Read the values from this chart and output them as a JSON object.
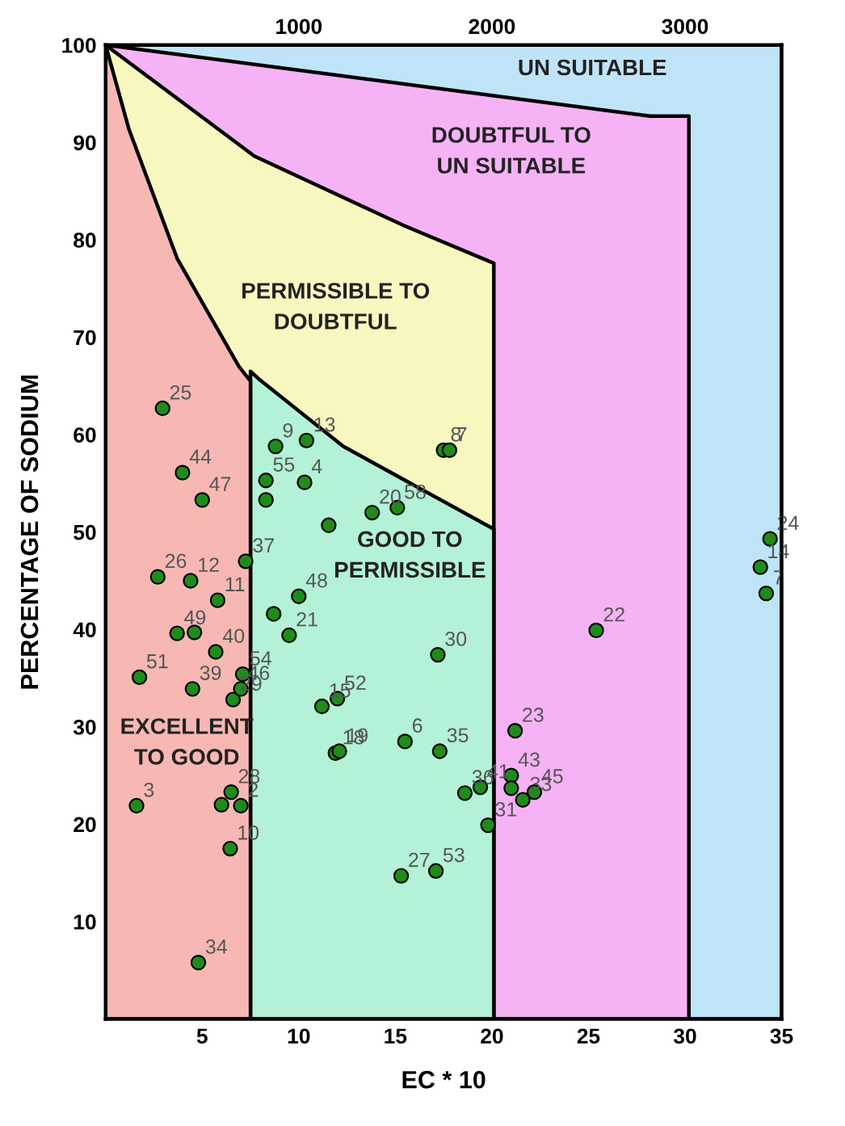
{
  "chart_data": {
    "type": "scatter",
    "xlabel": "EC * 10",
    "ylabel": "PERCENTAGE OF SODIUM",
    "xlim": [
      0,
      35
    ],
    "xticks": [
      5,
      10,
      15,
      20,
      25,
      30,
      35
    ],
    "ylim": [
      0,
      100
    ],
    "yticks": [
      10,
      20,
      30,
      40,
      50,
      60,
      70,
      80,
      90,
      100
    ],
    "x2lim": [
      0,
      3500
    ],
    "x2ticks": [
      1000,
      2000,
      3000
    ],
    "series": [
      {
        "type": "area",
        "color": "#bfe4f8",
        "x": [
          0,
          35
        ],
        "values": [
          100,
          100
        ]
      },
      {
        "type": "area",
        "color": "#f5b3f5",
        "x": [
          0,
          28.2,
          30.2
        ],
        "values": [
          100,
          92.7,
          92.7
        ]
      },
      {
        "type": "area",
        "color": "#f8f7c0",
        "x": [
          0,
          7.7,
          15.4,
          20.1
        ],
        "values": [
          100,
          88.6,
          81.5,
          77.6
        ]
      },
      {
        "type": "area",
        "color": "#b3f2d6",
        "x": [
          7.5,
          8.0,
          12.3,
          20.1
        ],
        "values": [
          66.5,
          65.6,
          58.8,
          50.3
        ]
      },
      {
        "type": "area",
        "color": "#f7b8b3",
        "x": [
          0,
          1.2,
          3.7,
          6.9,
          7.5
        ],
        "values": [
          100,
          91.4,
          78.1,
          67,
          65.5
        ]
      },
      {
        "type": "scatter",
        "color": "#1f8c1a",
        "marker": "circle",
        "x": [
          2.95,
          3.98,
          5.0,
          8.8,
          10.4,
          8.3,
          8.3,
          10.3,
          7.25,
          2.7,
          4.4,
          5.8,
          3.7,
          4.6,
          1.75,
          5.7,
          7.1,
          4.5,
          6.6,
          7.0,
          1.6,
          6.5,
          7.0,
          6.0,
          6.45,
          4.8,
          17.5,
          17.8,
          15.1,
          13.8,
          11.55,
          10.0,
          8.7,
          9.5,
          17.2,
          11.2,
          12.0,
          11.9,
          12.1,
          15.5,
          17.3,
          18.6,
          19.4,
          19.8,
          15.3,
          17.1,
          21.2,
          21.0,
          21.0,
          21.6,
          22.2,
          25.4,
          34.4,
          33.9,
          34.2
        ],
        "values": [
          62.7,
          56.1,
          53.3,
          58.8,
          59.4,
          55.3,
          53.3,
          55.1,
          47.0,
          45.4,
          45.0,
          43.0,
          39.6,
          39.7,
          35.1,
          37.7,
          35.4,
          33.9,
          32.8,
          33.9,
          21.9,
          23.3,
          21.9,
          22.0,
          17.5,
          5.8,
          58.4,
          58.4,
          52.5,
          52.0,
          50.7,
          43.4,
          41.6,
          39.4,
          37.4,
          32.1,
          32.9,
          27.3,
          27.5,
          28.5,
          27.5,
          23.2,
          23.8,
          19.9,
          14.7,
          15.2,
          29.6,
          25.0,
          23.7,
          22.5,
          23.3,
          39.9,
          49.3,
          46.4,
          43.7
        ]
      }
    ],
    "annotations": [
      "UN SUITABLE",
      "DOUBTFUL TO\nUN SUITABLE",
      "PERMISSIBLE TO\nDOUBTFUL",
      "GOOD TO\nPERMISSIBLE",
      "EXCELLENT\nTO GOOD",
      {
        "text": "25",
        "x": 2.95,
        "y": 62.7
      },
      {
        "text": "44",
        "x": 3.98,
        "y": 56.1
      },
      {
        "text": "47",
        "x": 5.0,
        "y": 53.3
      },
      {
        "text": "9",
        "x": 8.8,
        "y": 58.8
      },
      {
        "text": "13",
        "x": 10.4,
        "y": 59.4
      },
      {
        "text": "55",
        "x": 8.3,
        "y": 55.3
      },
      {
        "text": "4",
        "x": 10.3,
        "y": 55.1
      },
      {
        "text": "37",
        "x": 7.25,
        "y": 47.0
      },
      {
        "text": "26",
        "x": 2.7,
        "y": 45.4
      },
      {
        "text": "12",
        "x": 4.4,
        "y": 45.0
      },
      {
        "text": "11",
        "x": 5.8,
        "y": 43.0
      },
      {
        "text": "49",
        "x": 3.7,
        "y": 39.6
      },
      {
        "text": "51",
        "x": 1.75,
        "y": 35.1
      },
      {
        "text": "40",
        "x": 5.7,
        "y": 37.7
      },
      {
        "text": "54",
        "x": 7.1,
        "y": 35.4
      },
      {
        "text": "39",
        "x": 4.5,
        "y": 33.9
      },
      {
        "text": "29",
        "x": 6.6,
        "y": 32.8
      },
      {
        "text": "46",
        "x": 7.0,
        "y": 33.9
      },
      {
        "text": "3",
        "x": 1.6,
        "y": 21.9
      },
      {
        "text": "28",
        "x": 6.5,
        "y": 23.3
      },
      {
        "text": "2",
        "x": 7.0,
        "y": 21.9
      },
      {
        "text": "10",
        "x": 6.45,
        "y": 17.5
      },
      {
        "text": "34",
        "x": 4.8,
        "y": 5.8
      },
      {
        "text": "8",
        "x": 17.5,
        "y": 58.4
      },
      {
        "text": "7",
        "x": 17.8,
        "y": 58.4
      },
      {
        "text": "58",
        "x": 15.1,
        "y": 52.5
      },
      {
        "text": "20",
        "x": 13.8,
        "y": 52.0
      },
      {
        "text": "48",
        "x": 10.0,
        "y": 43.4
      },
      {
        "text": "21",
        "x": 9.5,
        "y": 39.4
      },
      {
        "text": "30",
        "x": 17.2,
        "y": 37.4
      },
      {
        "text": "15",
        "x": 11.2,
        "y": 32.1
      },
      {
        "text": "52",
        "x": 12.0,
        "y": 32.9
      },
      {
        "text": "18",
        "x": 11.9,
        "y": 27.3
      },
      {
        "text": "19",
        "x": 12.1,
        "y": 27.5
      },
      {
        "text": "6",
        "x": 15.5,
        "y": 28.5
      },
      {
        "text": "35",
        "x": 17.3,
        "y": 27.5
      },
      {
        "text": "36",
        "x": 18.6,
        "y": 23.2
      },
      {
        "text": "41",
        "x": 19.4,
        "y": 23.8
      },
      {
        "text": "31",
        "x": 19.8,
        "y": 19.9
      },
      {
        "text": "27",
        "x": 15.3,
        "y": 14.7
      },
      {
        "text": "53",
        "x": 17.1,
        "y": 15.2
      },
      {
        "text": "23",
        "x": 21.2,
        "y": 29.6
      },
      {
        "text": "43",
        "x": 21.0,
        "y": 25.0
      },
      {
        "text": "33",
        "x": 21.6,
        "y": 22.5
      },
      {
        "text": "45",
        "x": 22.2,
        "y": 23.3
      },
      {
        "text": "22",
        "x": 25.4,
        "y": 39.9
      },
      {
        "text": "24",
        "x": 34.4,
        "y": 49.3
      },
      {
        "text": "14",
        "x": 33.9,
        "y": 46.4
      },
      {
        "text": "7",
        "x": 34.2,
        "y": 43.7
      }
    ]
  }
}
